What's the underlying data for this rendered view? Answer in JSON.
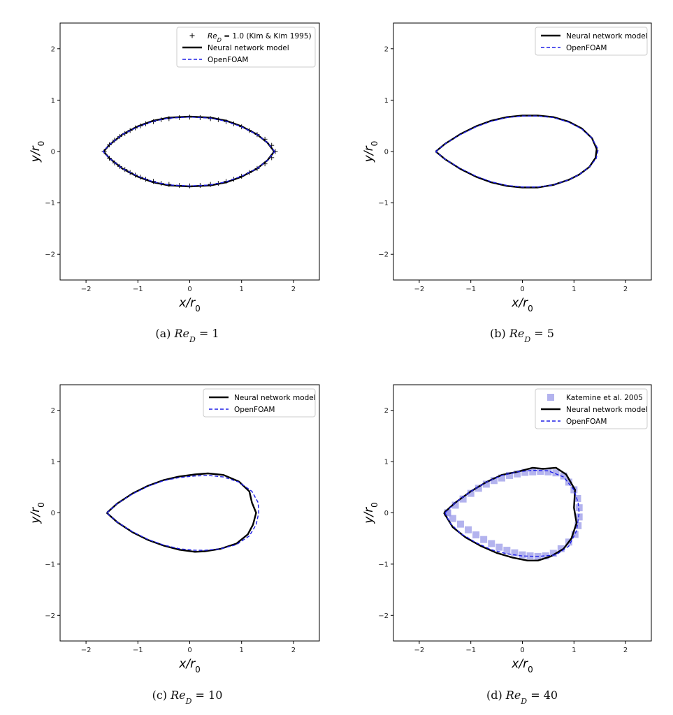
{
  "figure": {
    "captions": [
      {
        "label": "(a)",
        "math": "Re",
        "sub": "D",
        "value": "= 1"
      },
      {
        "label": "(b)",
        "math": "Re",
        "sub": "D",
        "value": "= 5"
      },
      {
        "label": "(c)",
        "math": "Re",
        "sub": "D",
        "value": "= 10"
      },
      {
        "label": "(d)",
        "math": "Re",
        "sub": "D",
        "value": "= 40"
      }
    ]
  },
  "chart_data": [
    {
      "type": "line",
      "xlabel": "x/r0",
      "ylabel": "y/r0",
      "xlim": [
        -2.5,
        2.5
      ],
      "ylim": [
        -2.5,
        2.5
      ],
      "xticks": [
        -2,
        -1,
        0,
        1,
        2
      ],
      "yticks": [
        -2,
        -1,
        0,
        1,
        2
      ],
      "legend_position": "top-right",
      "colors": {
        "nn": "#000000",
        "openfoam": "#1f1fe6",
        "ref": "#000000"
      },
      "legend": [
        "Re_D = 1.0 (Kim & Kim 1995)",
        "Neural network model",
        "OpenFOAM"
      ],
      "series": [
        {
          "name": "Neural network model",
          "style": "solid",
          "x": [
            1.63,
            1.5,
            1.3,
            1.0,
            0.7,
            0.4,
            0.0,
            -0.4,
            -0.7,
            -1.0,
            -1.3,
            -1.55,
            -1.66,
            -1.55,
            -1.3,
            -1.0,
            -0.7,
            -0.4,
            0.0,
            0.4,
            0.7,
            1.0,
            1.3,
            1.5,
            1.63
          ],
          "y": [
            0.0,
            0.17,
            0.33,
            0.49,
            0.6,
            0.66,
            0.68,
            0.66,
            0.6,
            0.49,
            0.33,
            0.13,
            0.0,
            -0.13,
            -0.33,
            -0.49,
            -0.6,
            -0.66,
            -0.68,
            -0.66,
            -0.6,
            -0.49,
            -0.33,
            -0.17,
            0.0
          ]
        },
        {
          "name": "OpenFOAM",
          "style": "dashed",
          "x": [
            1.64,
            1.5,
            1.3,
            1.0,
            0.7,
            0.4,
            0.0,
            -0.4,
            -0.7,
            -1.0,
            -1.3,
            -1.55,
            -1.67,
            -1.55,
            -1.3,
            -1.0,
            -0.7,
            -0.4,
            0.0,
            0.4,
            0.7,
            1.0,
            1.3,
            1.5,
            1.64
          ],
          "y": [
            0.0,
            0.17,
            0.33,
            0.48,
            0.59,
            0.65,
            0.67,
            0.65,
            0.59,
            0.48,
            0.33,
            0.13,
            0.0,
            -0.13,
            -0.33,
            -0.48,
            -0.59,
            -0.65,
            -0.67,
            -0.65,
            -0.59,
            -0.48,
            -0.33,
            -0.17,
            0.0
          ]
        },
        {
          "name": "Re_D = 1.0 (Kim & Kim 1995)",
          "style": "plus",
          "x": [
            -1.65,
            -1.55,
            -1.45,
            -1.35,
            -1.25,
            -1.15,
            -1.05,
            -0.95,
            -0.85,
            -0.7,
            -0.55,
            -0.4,
            -0.2,
            0.0,
            0.2,
            0.4,
            0.55,
            0.7,
            0.85,
            1.0,
            1.15,
            1.3,
            1.45,
            1.58,
            1.65,
            -1.55,
            -1.45,
            -1.35,
            -1.25,
            -1.15,
            -1.05,
            -0.95,
            -0.85,
            -0.7,
            -0.55,
            -0.4,
            -0.2,
            0.0,
            0.2,
            0.4,
            0.55,
            0.7,
            0.85,
            1.0,
            1.15,
            1.3,
            1.45,
            1.58
          ],
          "y": [
            0.0,
            0.13,
            0.22,
            0.29,
            0.35,
            0.41,
            0.46,
            0.5,
            0.54,
            0.58,
            0.62,
            0.64,
            0.66,
            0.67,
            0.66,
            0.64,
            0.62,
            0.58,
            0.54,
            0.48,
            0.41,
            0.33,
            0.24,
            0.12,
            0.0,
            -0.13,
            -0.22,
            -0.29,
            -0.35,
            -0.41,
            -0.46,
            -0.5,
            -0.54,
            -0.58,
            -0.62,
            -0.64,
            -0.66,
            -0.67,
            -0.66,
            -0.64,
            -0.62,
            -0.58,
            -0.54,
            -0.48,
            -0.41,
            -0.33,
            -0.24,
            -0.12
          ]
        }
      ]
    },
    {
      "type": "line",
      "xlabel": "x/r0",
      "ylabel": "y/r0",
      "xlim": [
        -2.5,
        2.5
      ],
      "ylim": [
        -2.5,
        2.5
      ],
      "xticks": [
        -2,
        -1,
        0,
        1,
        2
      ],
      "yticks": [
        -2,
        -1,
        0,
        1,
        2
      ],
      "legend_position": "top-right",
      "colors": {
        "nn": "#000000",
        "openfoam": "#1f1fe6"
      },
      "legend": [
        "Neural network model",
        "OpenFOAM"
      ],
      "series": [
        {
          "name": "Neural network model",
          "style": "solid",
          "x": [
            -1.68,
            -1.5,
            -1.2,
            -0.9,
            -0.6,
            -0.3,
            0.0,
            0.3,
            0.6,
            0.9,
            1.15,
            1.35,
            1.44,
            1.42,
            1.3,
            1.1,
            0.9,
            0.6,
            0.3,
            0.0,
            -0.3,
            -0.6,
            -0.9,
            -1.2,
            -1.5,
            -1.68
          ],
          "y": [
            0.0,
            0.15,
            0.34,
            0.49,
            0.6,
            0.67,
            0.7,
            0.7,
            0.67,
            0.58,
            0.45,
            0.26,
            0.05,
            -0.12,
            -0.3,
            -0.45,
            -0.55,
            -0.65,
            -0.7,
            -0.7,
            -0.67,
            -0.6,
            -0.49,
            -0.34,
            -0.15,
            0.0
          ]
        },
        {
          "name": "OpenFOAM",
          "style": "dashed",
          "x": [
            -1.68,
            -1.5,
            -1.2,
            -0.9,
            -0.6,
            -0.3,
            0.0,
            0.3,
            0.6,
            0.9,
            1.15,
            1.35,
            1.47,
            1.43,
            1.3,
            1.1,
            0.9,
            0.6,
            0.3,
            0.0,
            -0.3,
            -0.6,
            -0.9,
            -1.2,
            -1.5,
            -1.68
          ],
          "y": [
            0.0,
            0.15,
            0.33,
            0.48,
            0.59,
            0.66,
            0.69,
            0.69,
            0.66,
            0.57,
            0.44,
            0.26,
            0.04,
            -0.14,
            -0.3,
            -0.45,
            -0.55,
            -0.65,
            -0.69,
            -0.69,
            -0.66,
            -0.59,
            -0.48,
            -0.33,
            -0.15,
            0.0
          ]
        }
      ]
    },
    {
      "type": "line",
      "xlabel": "x/r0",
      "ylabel": "y/r0",
      "xlim": [
        -2.5,
        2.5
      ],
      "ylim": [
        -2.5,
        2.5
      ],
      "xticks": [
        -2,
        -1,
        0,
        1,
        2
      ],
      "yticks": [
        -2,
        -1,
        0,
        1,
        2
      ],
      "legend_position": "top-right",
      "colors": {
        "nn": "#000000",
        "openfoam": "#1f1fe6"
      },
      "legend": [
        "Neural network model",
        "OpenFOAM"
      ],
      "series": [
        {
          "name": "Neural network model",
          "style": "solid",
          "x": [
            -1.6,
            -1.4,
            -1.1,
            -0.8,
            -0.5,
            -0.2,
            0.1,
            0.35,
            0.65,
            0.95,
            1.15,
            1.2,
            1.28,
            1.22,
            1.12,
            0.9,
            0.6,
            0.3,
            0.1,
            -0.2,
            -0.5,
            -0.8,
            -1.1,
            -1.4,
            -1.6
          ],
          "y": [
            0.0,
            0.18,
            0.38,
            0.53,
            0.64,
            0.71,
            0.75,
            0.77,
            0.74,
            0.61,
            0.42,
            0.2,
            0.0,
            -0.23,
            -0.42,
            -0.6,
            -0.7,
            -0.75,
            -0.76,
            -0.72,
            -0.64,
            -0.53,
            -0.38,
            -0.18,
            0.0
          ]
        },
        {
          "name": "OpenFOAM",
          "style": "dashed",
          "x": [
            -1.6,
            -1.4,
            -1.1,
            -0.8,
            -0.5,
            -0.2,
            0.1,
            0.35,
            0.65,
            0.95,
            1.2,
            1.32,
            1.33,
            1.28,
            1.15,
            0.9,
            0.6,
            0.3,
            0.1,
            -0.2,
            -0.5,
            -0.8,
            -1.1,
            -1.4,
            -1.6
          ],
          "y": [
            0.0,
            0.18,
            0.37,
            0.52,
            0.63,
            0.69,
            0.72,
            0.73,
            0.7,
            0.6,
            0.42,
            0.2,
            0.0,
            -0.23,
            -0.45,
            -0.62,
            -0.7,
            -0.73,
            -0.73,
            -0.7,
            -0.63,
            -0.52,
            -0.37,
            -0.18,
            0.0
          ]
        }
      ]
    },
    {
      "type": "line",
      "xlabel": "x/r0",
      "ylabel": "y/r0",
      "xlim": [
        -2.5,
        2.5
      ],
      "ylim": [
        -2.5,
        2.5
      ],
      "xticks": [
        -2,
        -1,
        0,
        1,
        2
      ],
      "yticks": [
        -2,
        -1,
        0,
        1,
        2
      ],
      "legend_position": "top-right",
      "colors": {
        "nn": "#000000",
        "openfoam": "#1f1fe6",
        "ref": "#9a9ae8"
      },
      "legend": [
        "Katemine et al. 2005",
        "Neural network model",
        "OpenFOAM"
      ],
      "series": [
        {
          "name": "Neural network model",
          "style": "solid",
          "x": [
            -1.52,
            -1.3,
            -1.0,
            -0.7,
            -0.4,
            -0.1,
            0.2,
            0.4,
            0.65,
            0.85,
            1.02,
            1.0,
            1.05,
            0.95,
            0.8,
            0.55,
            0.3,
            0.1,
            -0.2,
            -0.5,
            -0.8,
            -1.1,
            -1.35,
            -1.52
          ],
          "y": [
            0.0,
            0.2,
            0.42,
            0.6,
            0.74,
            0.8,
            0.88,
            0.86,
            0.88,
            0.75,
            0.45,
            0.1,
            -0.2,
            -0.5,
            -0.7,
            -0.85,
            -0.93,
            -0.93,
            -0.87,
            -0.78,
            -0.65,
            -0.48,
            -0.28,
            0.0
          ]
        },
        {
          "name": "OpenFOAM",
          "style": "dashed",
          "x": [
            -1.5,
            -1.3,
            -1.0,
            -0.7,
            -0.4,
            -0.1,
            0.2,
            0.5,
            0.8,
            1.0,
            1.08,
            1.1,
            1.05,
            0.9,
            0.65,
            0.3,
            0.0,
            -0.3,
            -0.6,
            -0.9,
            -1.2,
            -1.4,
            -1.5
          ],
          "y": [
            0.0,
            0.2,
            0.42,
            0.6,
            0.73,
            0.8,
            0.83,
            0.82,
            0.7,
            0.45,
            0.2,
            0.0,
            -0.35,
            -0.65,
            -0.82,
            -0.85,
            -0.84,
            -0.8,
            -0.72,
            -0.58,
            -0.4,
            -0.2,
            0.0
          ]
        },
        {
          "name": "Katemine et al. 2005",
          "style": "square",
          "x": [
            -1.45,
            -1.3,
            -1.15,
            -1.0,
            -0.85,
            -0.7,
            -0.55,
            -0.4,
            -0.25,
            -0.1,
            0.05,
            0.2,
            0.35,
            0.5,
            0.65,
            0.8,
            0.9,
            1.0,
            1.07,
            1.1,
            1.1,
            1.08,
            1.02,
            0.9,
            0.75,
            0.6,
            0.45,
            0.3,
            0.15,
            0.0,
            -0.15,
            -0.3,
            -0.45,
            -0.6,
            -0.75,
            -0.9,
            -1.05,
            -1.2,
            -1.35,
            -1.45
          ],
          "y": [
            0.0,
            0.15,
            0.27,
            0.38,
            0.48,
            0.56,
            0.63,
            0.68,
            0.73,
            0.76,
            0.79,
            0.8,
            0.81,
            0.8,
            0.78,
            0.72,
            0.6,
            0.45,
            0.28,
            0.1,
            -0.08,
            -0.25,
            -0.42,
            -0.57,
            -0.7,
            -0.79,
            -0.84,
            -0.85,
            -0.84,
            -0.82,
            -0.78,
            -0.73,
            -0.67,
            -0.6,
            -0.52,
            -0.43,
            -0.33,
            -0.22,
            -0.11,
            0.0
          ]
        }
      ]
    }
  ]
}
